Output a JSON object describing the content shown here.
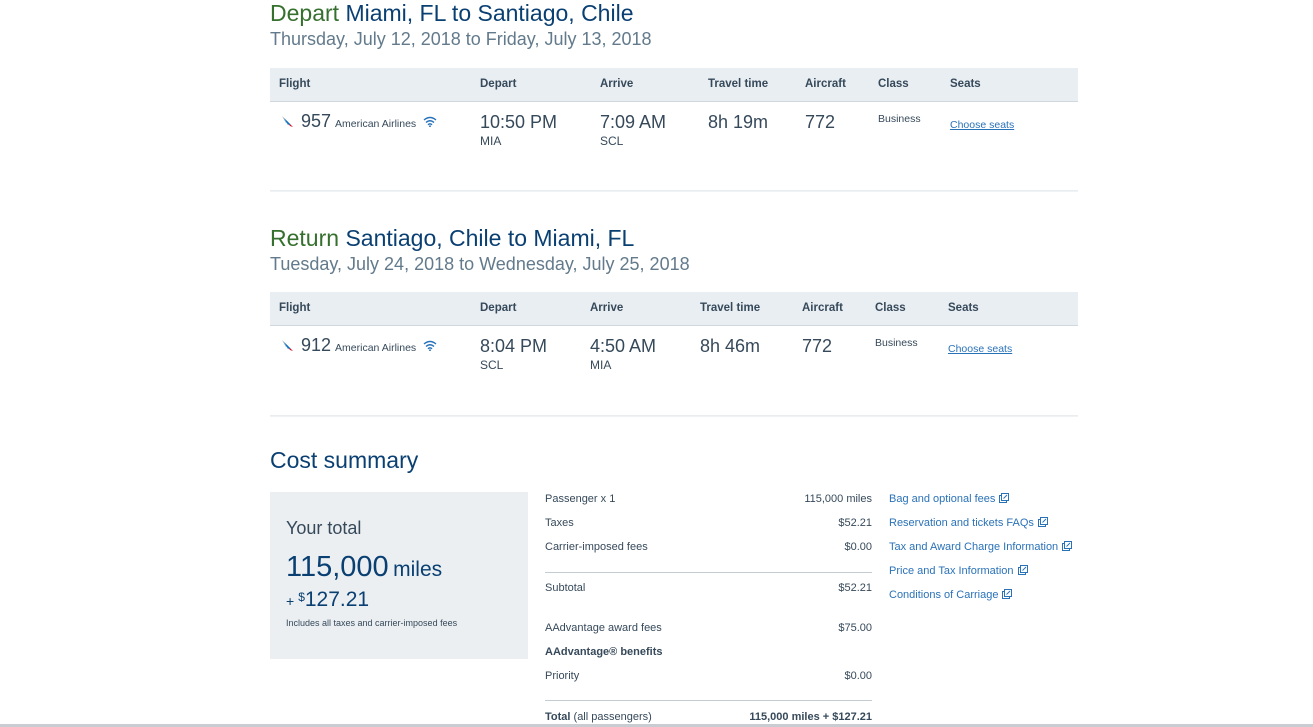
{
  "depart": {
    "label": "Depart",
    "route": "Miami, FL to Santiago, Chile",
    "dates": "Thursday, July 12, 2018 to Friday, July 13, 2018",
    "headers": [
      "Flight",
      "Depart",
      "Arrive",
      "Travel time",
      "Aircraft",
      "Class",
      "Seats"
    ],
    "flight": {
      "number": "957",
      "airline": "American Airlines",
      "depart_time": "10:50 PM",
      "depart_airport": "MIA",
      "arrive_time": "7:09 AM",
      "arrive_airport": "SCL",
      "travel_time": "8h 19m",
      "aircraft": "772",
      "class": "Business",
      "seats_link": "Choose seats"
    }
  },
  "return": {
    "label": "Return",
    "route": "Santiago, Chile to Miami, FL",
    "dates": "Tuesday, July 24, 2018 to Wednesday, July 25, 2018",
    "headers": [
      "Flight",
      "Depart",
      "Arrive",
      "Travel time",
      "Aircraft",
      "Class",
      "Seats"
    ],
    "flight": {
      "number": "912",
      "airline": "American Airlines",
      "depart_time": "8:04 PM",
      "depart_airport": "SCL",
      "arrive_time": "4:50 AM",
      "arrive_airport": "MIA",
      "travel_time": "8h 46m",
      "aircraft": "772",
      "class": "Business",
      "seats_link": "Choose seats"
    }
  },
  "cost": {
    "title": "Cost summary",
    "your_total": "Your total",
    "miles": "115,000",
    "miles_unit": "miles",
    "plus": "+",
    "currency": "$",
    "cash": "127.21",
    "note": "Includes all taxes and carrier-imposed fees",
    "rows": [
      {
        "label": "Passenger x 1",
        "value": "115,000 miles"
      },
      {
        "label": "Taxes",
        "value": "$52.21"
      },
      {
        "label": "Carrier-imposed fees",
        "value": "$0.00"
      },
      {
        "label": "Subtotal",
        "value": "$52.21"
      },
      {
        "label": "AAdvantage award fees",
        "value": "$75.00"
      },
      {
        "label": "AAdvantage® benefits",
        "value": ""
      },
      {
        "label": "Priority",
        "value": "$0.00"
      }
    ],
    "total_label": "Total",
    "total_sub": "(all passengers)",
    "total_value": "115,000 miles + $127.21"
  },
  "links": [
    "Bag and optional fees",
    "Reservation and tickets FAQs",
    "Tax and Award Charge Information",
    "Price and Tax Information",
    "Conditions of Carriage"
  ],
  "colors": {
    "accent_blue": "#0a3f72",
    "direction_green": "#36702e",
    "link_blue": "#2a72b8"
  }
}
